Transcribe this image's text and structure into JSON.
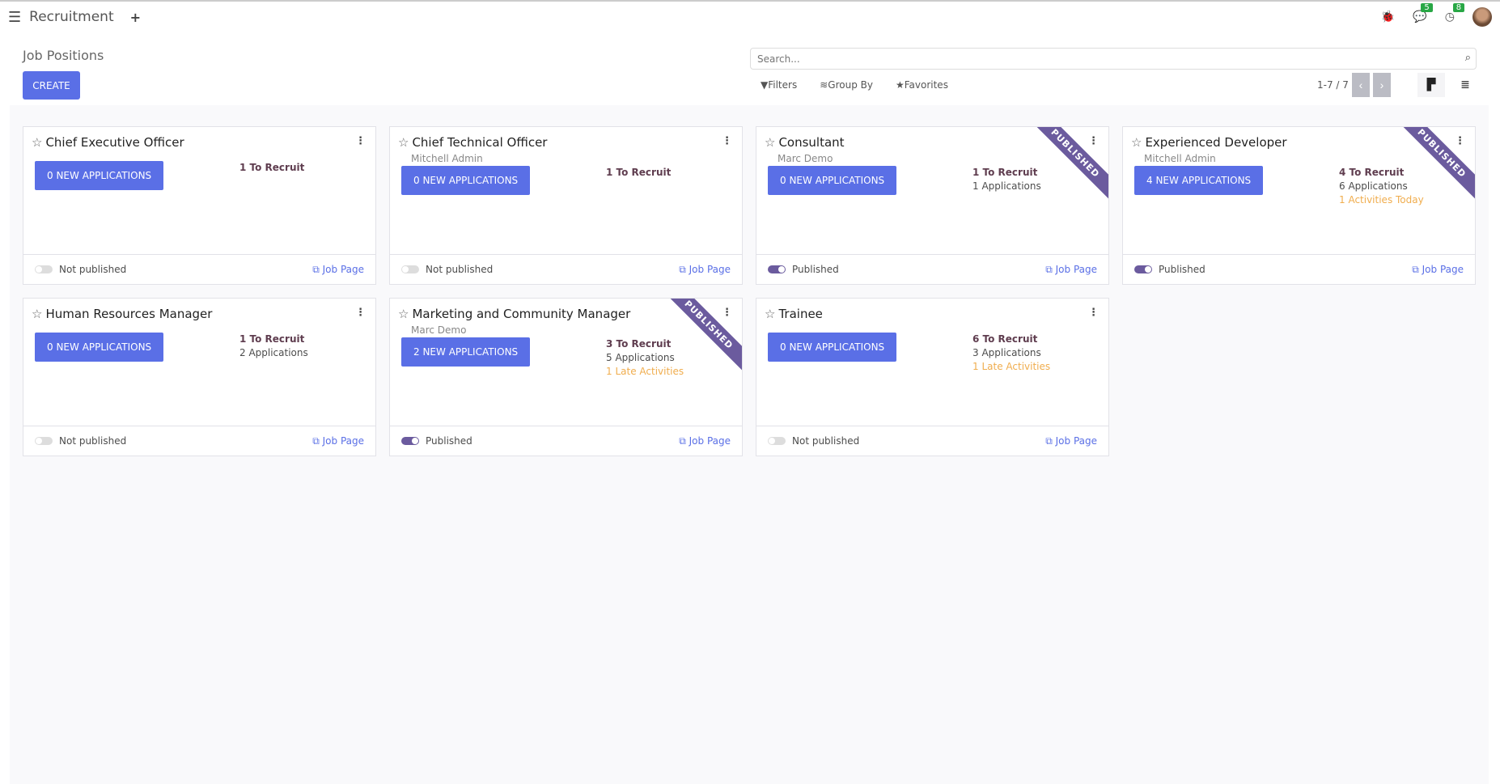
{
  "nav": {
    "menu_icon": "hamburger-icon",
    "app": "Recruitment",
    "plus": "+",
    "messages_count": "5",
    "activities_count": "8"
  },
  "control": {
    "title": "Job Positions",
    "create": "CREATE",
    "search_placeholder": "Search...",
    "filters": "Filters",
    "group_by": "Group By",
    "favorites": "Favorites",
    "pager": "1-7 / 7"
  },
  "colors": {
    "primary": "#5a6fe6",
    "published": "#6b5b9e",
    "late": "#f0ad4e"
  },
  "jobs": [
    {
      "name": "Chief Executive Officer",
      "sub": "",
      "apps": "0 NEW APPLICATIONS",
      "recruit": "1 To Recruit",
      "applications": "",
      "activity": "",
      "status": "Not published",
      "published": false,
      "link": "Job Page"
    },
    {
      "name": "Chief Technical Officer",
      "sub": "Mitchell Admin",
      "apps": "0 NEW APPLICATIONS",
      "recruit": "1 To Recruit",
      "applications": "",
      "activity": "",
      "status": "Not published",
      "published": false,
      "link": "Job Page"
    },
    {
      "name": "Consultant",
      "sub": "Marc Demo",
      "apps": "0 NEW APPLICATIONS",
      "recruit": "1 To Recruit",
      "applications": "1 Applications",
      "activity": "",
      "status": "Published",
      "published": true,
      "ribbon": "PUBLISHED",
      "link": "Job Page"
    },
    {
      "name": "Experienced Developer",
      "sub": "Mitchell Admin",
      "apps": "4 NEW APPLICATIONS",
      "recruit": "4 To Recruit",
      "applications": "6 Applications",
      "activity": "1 Activities Today",
      "status": "Published",
      "published": true,
      "ribbon": "PUBLISHED",
      "link": "Job Page"
    },
    {
      "name": "Human Resources Manager",
      "sub": "",
      "apps": "0 NEW APPLICATIONS",
      "recruit": "1 To Recruit",
      "applications": "2 Applications",
      "activity": "",
      "status": "Not published",
      "published": false,
      "link": "Job Page"
    },
    {
      "name": "Marketing and Community Manager",
      "sub": "Marc Demo",
      "apps": "2 NEW APPLICATIONS",
      "recruit": "3 To Recruit",
      "applications": "5 Applications",
      "activity": "1 Late Activities",
      "status": "Published",
      "published": true,
      "ribbon": "PUBLISHED",
      "link": "Job Page"
    },
    {
      "name": "Trainee",
      "sub": "",
      "apps": "0 NEW APPLICATIONS",
      "recruit": "6 To Recruit",
      "applications": "3 Applications",
      "activity": "1 Late Activities",
      "status": "Not published",
      "published": false,
      "link": "Job Page"
    }
  ]
}
